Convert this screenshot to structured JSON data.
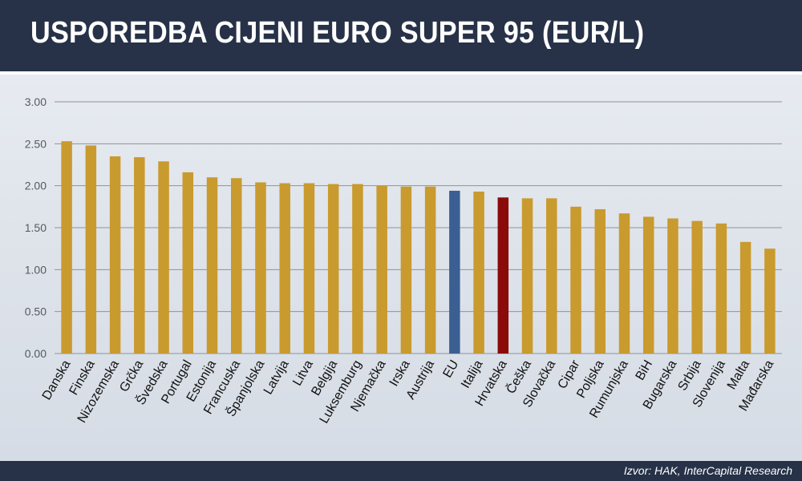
{
  "header": {
    "title": "USPOREDBA CIJENI EURO SUPER 95 (EUR/L)"
  },
  "footer": {
    "source": "Izvor: HAK, InterCapital Research"
  },
  "colors": {
    "default_bar": "#C99A2E",
    "eu_bar": "#3B5F93",
    "croatia_bar": "#8B0A0A",
    "header_bg": "#273248"
  },
  "chart_data": {
    "type": "bar",
    "title": "USPOREDBA CIJENI EURO SUPER 95 (EUR/L)",
    "xlabel": "",
    "ylabel": "",
    "ylim": [
      0,
      3
    ],
    "yticks": [
      "0.00",
      "0.50",
      "1.00",
      "1.50",
      "2.00",
      "2.50",
      "3.00"
    ],
    "grid": true,
    "categories": [
      "Danska",
      "Finska",
      "Nizozemska",
      "Grčka",
      "Švedska",
      "Portugal",
      "Estonija",
      "Francuska",
      "Španjolska",
      "Latvija",
      "Litva",
      "Belgija",
      "Luksemburg",
      "Njemačka",
      "Irska",
      "Austrija",
      "EU",
      "Italija",
      "Hrvatska",
      "Češka",
      "Slovačka",
      "Cipar",
      "Poljska",
      "Rumunjska",
      "BiH",
      "Bugarska",
      "Srbija",
      "Slovenija",
      "Malta",
      "Mađarska"
    ],
    "values": [
      2.53,
      2.48,
      2.35,
      2.34,
      2.29,
      2.16,
      2.1,
      2.09,
      2.04,
      2.03,
      2.03,
      2.02,
      2.02,
      2.0,
      1.99,
      1.99,
      1.94,
      1.93,
      1.86,
      1.85,
      1.85,
      1.75,
      1.72,
      1.67,
      1.63,
      1.61,
      1.58,
      1.55,
      1.33,
      1.25
    ],
    "highlight": {
      "EU": "#3B5F93",
      "Hrvatska": "#8B0A0A"
    }
  }
}
